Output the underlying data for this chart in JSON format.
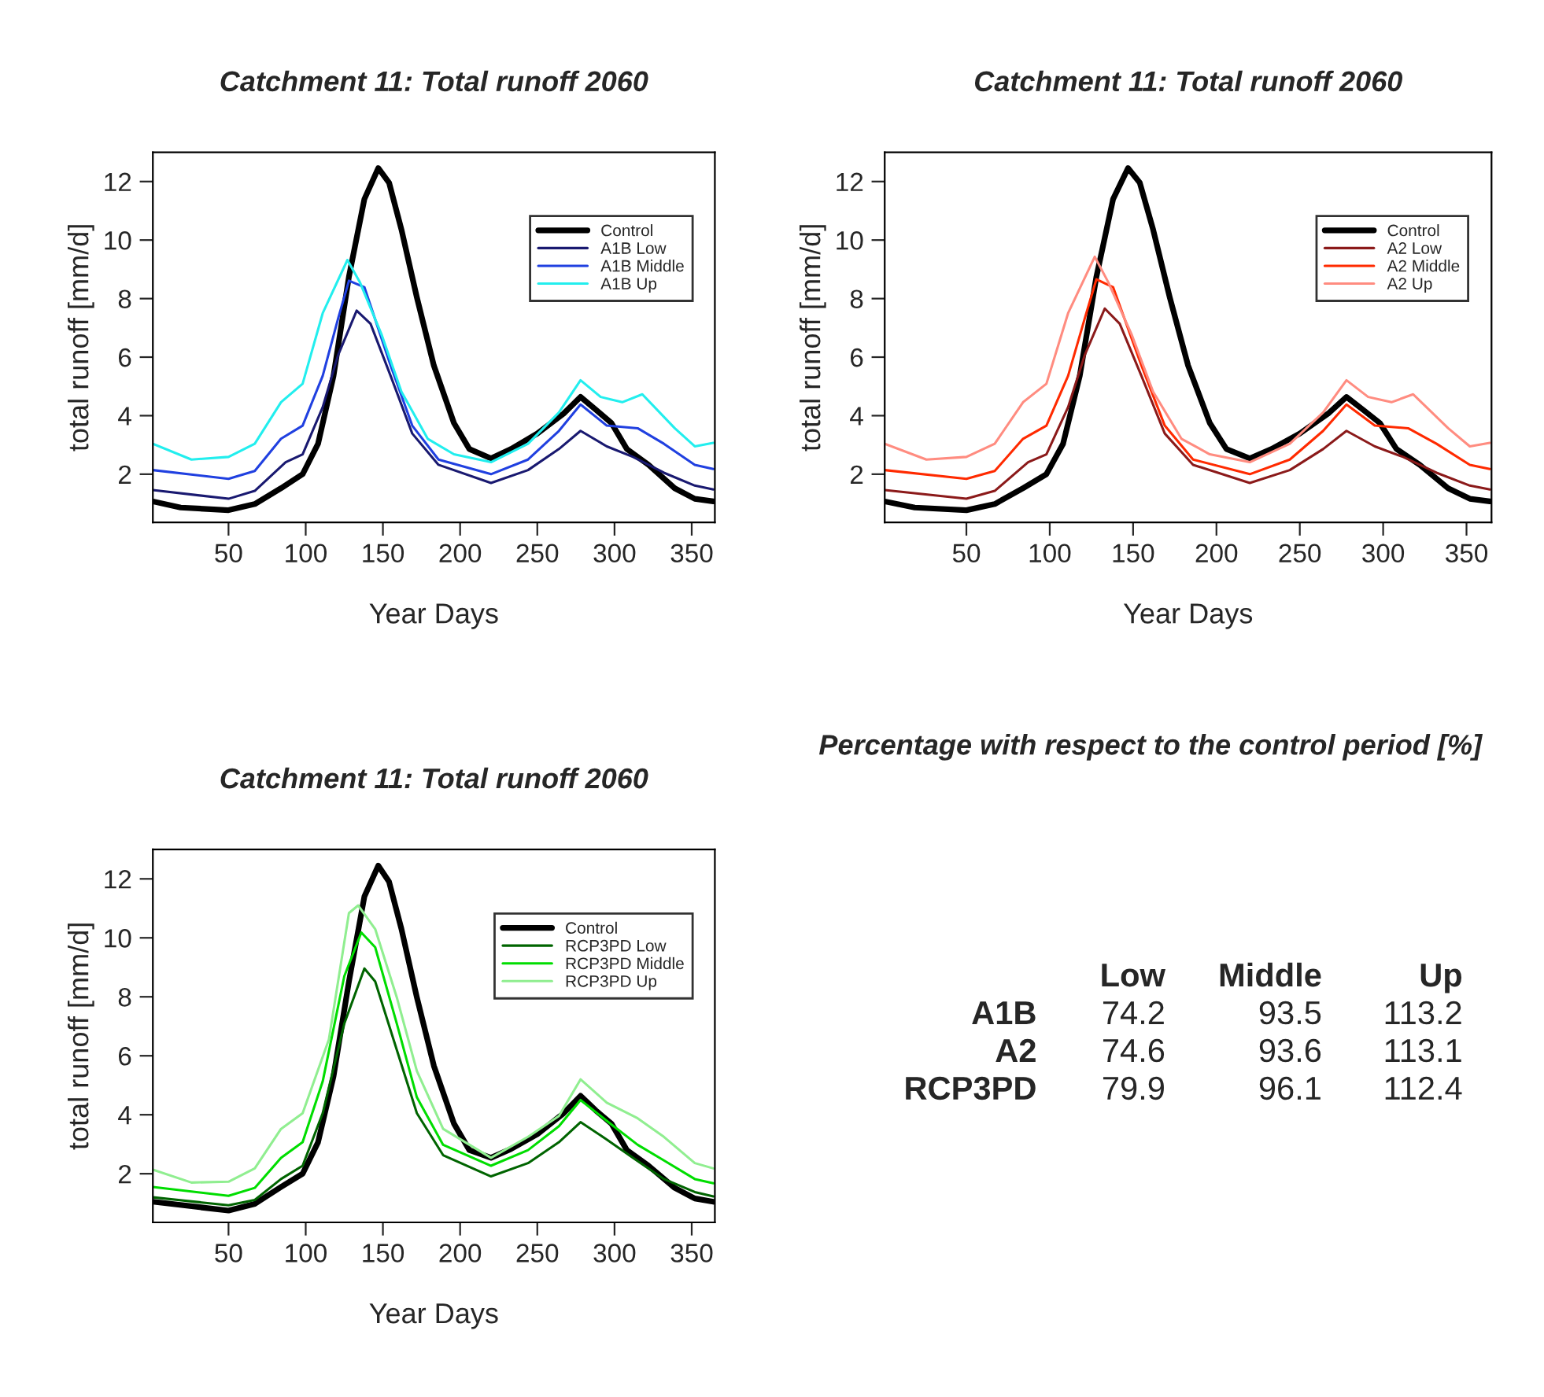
{
  "chart_data": [
    {
      "type": "line",
      "title": "Catchment 11: Total runoff 2060",
      "xlabel": "Year Days",
      "ylabel": "total runoff [mm/d]",
      "xlim": [
        1,
        365
      ],
      "ylim": [
        0.35,
        13.0
      ],
      "xticks": [
        50,
        100,
        150,
        200,
        250,
        300,
        350
      ],
      "yticks": [
        2,
        4,
        6,
        8,
        10,
        12
      ],
      "grid": false,
      "legend": "top right",
      "line_style": "solid",
      "marker": "none",
      "series": [
        {
          "name": "Control",
          "color": "#000000",
          "x": [
            1,
            19,
            50,
            67,
            84,
            98,
            108,
            118,
            128,
            138,
            147,
            154,
            162,
            172,
            183,
            196,
            206,
            220,
            233,
            250,
            267,
            278,
            288,
            298,
            308,
            322,
            339,
            352,
            364
          ],
          "values": [
            1.07,
            0.86,
            0.77,
            0.98,
            1.52,
            2.0,
            3.04,
            5.36,
            8.75,
            11.4,
            12.46,
            11.96,
            10.36,
            8.04,
            5.71,
            3.75,
            2.86,
            2.54,
            2.86,
            3.39,
            4.07,
            4.64,
            4.2,
            3.75,
            2.86,
            2.32,
            1.52,
            1.16,
            1.07
          ]
        },
        {
          "name": "A1B Low",
          "color": "#191970",
          "x": [
            1,
            50,
            67,
            87,
            98,
            111,
            121,
            133,
            142,
            155,
            169,
            186,
            220,
            244,
            264,
            278,
            295,
            312,
            332,
            352,
            364
          ],
          "values": [
            1.46,
            1.16,
            1.43,
            2.41,
            2.68,
            4.29,
            6.07,
            7.59,
            7.14,
            5.36,
            3.39,
            2.32,
            1.7,
            2.14,
            2.86,
            3.48,
            2.95,
            2.59,
            2.05,
            1.61,
            1.48
          ]
        },
        {
          "name": "A1B Middle",
          "color": "#2040e0",
          "x": [
            1,
            50,
            67,
            84,
            98,
            111,
            121,
            128,
            138,
            155,
            169,
            186,
            220,
            244,
            264,
            278,
            295,
            315,
            332,
            352,
            364
          ],
          "values": [
            2.14,
            1.84,
            2.11,
            3.21,
            3.66,
            5.36,
            7.32,
            8.61,
            8.39,
            5.71,
            3.66,
            2.5,
            2.0,
            2.5,
            3.48,
            4.38,
            3.66,
            3.57,
            3.04,
            2.32,
            2.18
          ]
        },
        {
          "name": "A1B Up",
          "color": "#22eeee",
          "x": [
            1,
            26,
            50,
            67,
            84,
            98,
            111,
            127,
            135,
            149,
            162,
            179,
            196,
            220,
            244,
            264,
            278,
            291,
            305,
            318,
            339,
            352,
            364
          ],
          "values": [
            3.04,
            2.5,
            2.59,
            3.04,
            4.46,
            5.09,
            7.5,
            9.32,
            8.57,
            6.79,
            4.82,
            3.21,
            2.68,
            2.41,
            3.04,
            4.11,
            5.21,
            4.64,
            4.46,
            4.73,
            3.57,
            2.95,
            3.07
          ]
        }
      ]
    },
    {
      "type": "line",
      "title": "Catchment 11: Total runoff 2060",
      "xlabel": "Year Days",
      "ylabel": "total runoff [mm/d]",
      "xlim": [
        1,
        365
      ],
      "ylim": [
        0.35,
        13.0
      ],
      "xticks": [
        50,
        100,
        150,
        200,
        250,
        300,
        350
      ],
      "yticks": [
        2,
        4,
        6,
        8,
        10,
        12
      ],
      "grid": false,
      "legend": "top right",
      "line_style": "solid",
      "marker": "none",
      "series": [
        {
          "name": "Control",
          "color": "#000000",
          "x": [
            1,
            19,
            50,
            67,
            84,
            98,
            108,
            118,
            128,
            138,
            147,
            154,
            162,
            172,
            183,
            196,
            206,
            220,
            233,
            250,
            267,
            278,
            288,
            298,
            308,
            322,
            339,
            352,
            364
          ],
          "values": [
            1.07,
            0.86,
            0.77,
            0.98,
            1.52,
            2.0,
            3.04,
            5.36,
            8.75,
            11.4,
            12.46,
            11.96,
            10.36,
            8.04,
            5.71,
            3.75,
            2.86,
            2.54,
            2.86,
            3.39,
            4.07,
            4.64,
            4.2,
            3.75,
            2.86,
            2.32,
            1.52,
            1.16,
            1.07
          ]
        },
        {
          "name": "A2 Low",
          "color": "#8b1a1a",
          "x": [
            1,
            50,
            67,
            87,
            98,
            111,
            121,
            133,
            142,
            155,
            169,
            186,
            220,
            244,
            264,
            278,
            295,
            312,
            332,
            352,
            364
          ],
          "values": [
            1.46,
            1.16,
            1.43,
            2.41,
            2.68,
            4.29,
            6.07,
            7.66,
            7.14,
            5.36,
            3.39,
            2.32,
            1.7,
            2.14,
            2.86,
            3.48,
            2.95,
            2.59,
            2.05,
            1.61,
            1.48
          ]
        },
        {
          "name": "A2 Middle",
          "color": "#ff2a00",
          "x": [
            1,
            50,
            67,
            84,
            98,
            111,
            121,
            128,
            138,
            155,
            169,
            186,
            220,
            244,
            264,
            278,
            295,
            315,
            332,
            352,
            364
          ],
          "values": [
            2.14,
            1.84,
            2.11,
            3.21,
            3.66,
            5.36,
            7.32,
            8.66,
            8.39,
            5.71,
            3.66,
            2.5,
            2.0,
            2.5,
            3.48,
            4.38,
            3.66,
            3.57,
            3.04,
            2.32,
            2.18
          ]
        },
        {
          "name": "A2 Up",
          "color": "#ff8c80",
          "x": [
            1,
            26,
            50,
            67,
            84,
            98,
            111,
            127,
            135,
            149,
            162,
            179,
            196,
            220,
            244,
            264,
            278,
            291,
            305,
            318,
            339,
            352,
            364
          ],
          "values": [
            3.04,
            2.5,
            2.59,
            3.04,
            4.46,
            5.09,
            7.5,
            9.43,
            8.57,
            6.79,
            4.82,
            3.21,
            2.68,
            2.41,
            3.04,
            4.11,
            5.21,
            4.64,
            4.46,
            4.73,
            3.57,
            2.95,
            3.07
          ]
        }
      ]
    },
    {
      "type": "line",
      "title": "Catchment 11: Total runoff 2060",
      "xlabel": "Year Days",
      "ylabel": "total runoff [mm/d]",
      "xlim": [
        1,
        365
      ],
      "ylim": [
        0.35,
        13.0
      ],
      "xticks": [
        50,
        100,
        150,
        200,
        250,
        300,
        350
      ],
      "yticks": [
        2,
        4,
        6,
        8,
        10,
        12
      ],
      "grid": false,
      "legend": "top right",
      "line_style": "solid",
      "marker": "none",
      "series": [
        {
          "name": "Control",
          "color": "#000000",
          "x": [
            1,
            50,
            67,
            84,
            98,
            108,
            118,
            128,
            138,
            147,
            154,
            162,
            172,
            183,
            196,
            206,
            220,
            233,
            250,
            267,
            278,
            288,
            298,
            308,
            322,
            339,
            352,
            364
          ],
          "values": [
            1.05,
            0.75,
            0.98,
            1.55,
            2.0,
            3.07,
            5.3,
            8.52,
            11.4,
            12.45,
            11.9,
            10.3,
            7.98,
            5.66,
            3.7,
            2.8,
            2.54,
            2.84,
            3.34,
            4.05,
            4.64,
            4.14,
            3.7,
            2.8,
            2.27,
            1.52,
            1.16,
            1.05
          ]
        },
        {
          "name": "RCP3PD Low",
          "color": "#006400",
          "x": [
            1,
            50,
            67,
            84,
            98,
            111,
            125,
            138,
            145,
            159,
            172,
            189,
            220,
            244,
            264,
            278,
            295,
            312,
            332,
            352,
            364
          ],
          "values": [
            1.2,
            0.93,
            1.11,
            1.82,
            2.27,
            4.05,
            7.09,
            8.96,
            8.52,
            6.2,
            4.05,
            2.63,
            1.91,
            2.36,
            3.07,
            3.75,
            3.16,
            2.54,
            1.82,
            1.38,
            1.23
          ]
        },
        {
          "name": "RCP3PD Middle",
          "color": "#00dd00",
          "x": [
            1,
            50,
            67,
            84,
            98,
            111,
            125,
            136,
            145,
            159,
            172,
            189,
            220,
            244,
            264,
            278,
            295,
            315,
            332,
            352,
            364
          ],
          "values": [
            1.55,
            1.25,
            1.52,
            2.54,
            3.07,
            5.13,
            8.7,
            10.18,
            9.68,
            7.09,
            4.59,
            2.98,
            2.27,
            2.8,
            3.61,
            4.5,
            3.79,
            2.98,
            2.45,
            1.82,
            1.68
          ]
        },
        {
          "name": "RCP3PD Up",
          "color": "#90ee90",
          "x": [
            1,
            26,
            50,
            67,
            84,
            98,
            115,
            128,
            134,
            145,
            159,
            172,
            189,
            220,
            244,
            264,
            278,
            295,
            315,
            332,
            352,
            364
          ],
          "values": [
            2.14,
            1.7,
            1.73,
            2.18,
            3.52,
            4.05,
            6.55,
            10.84,
            11.1,
            10.3,
            7.98,
            5.48,
            3.52,
            2.54,
            3.25,
            3.96,
            5.2,
            4.41,
            3.88,
            3.25,
            2.36,
            2.18
          ]
        }
      ]
    },
    {
      "type": "other",
      "title": "Percentage with respect to the control period [%]",
      "categories": [
        "Low",
        "Middle",
        "Up"
      ],
      "data_labels": true,
      "series": [
        {
          "name": "A1B",
          "values": [
            74.2,
            93.5,
            113.2
          ]
        },
        {
          "name": "A2",
          "values": [
            74.6,
            93.6,
            113.1
          ]
        },
        {
          "name": "RCP3PD",
          "values": [
            79.9,
            96.1,
            112.4
          ]
        }
      ]
    }
  ]
}
